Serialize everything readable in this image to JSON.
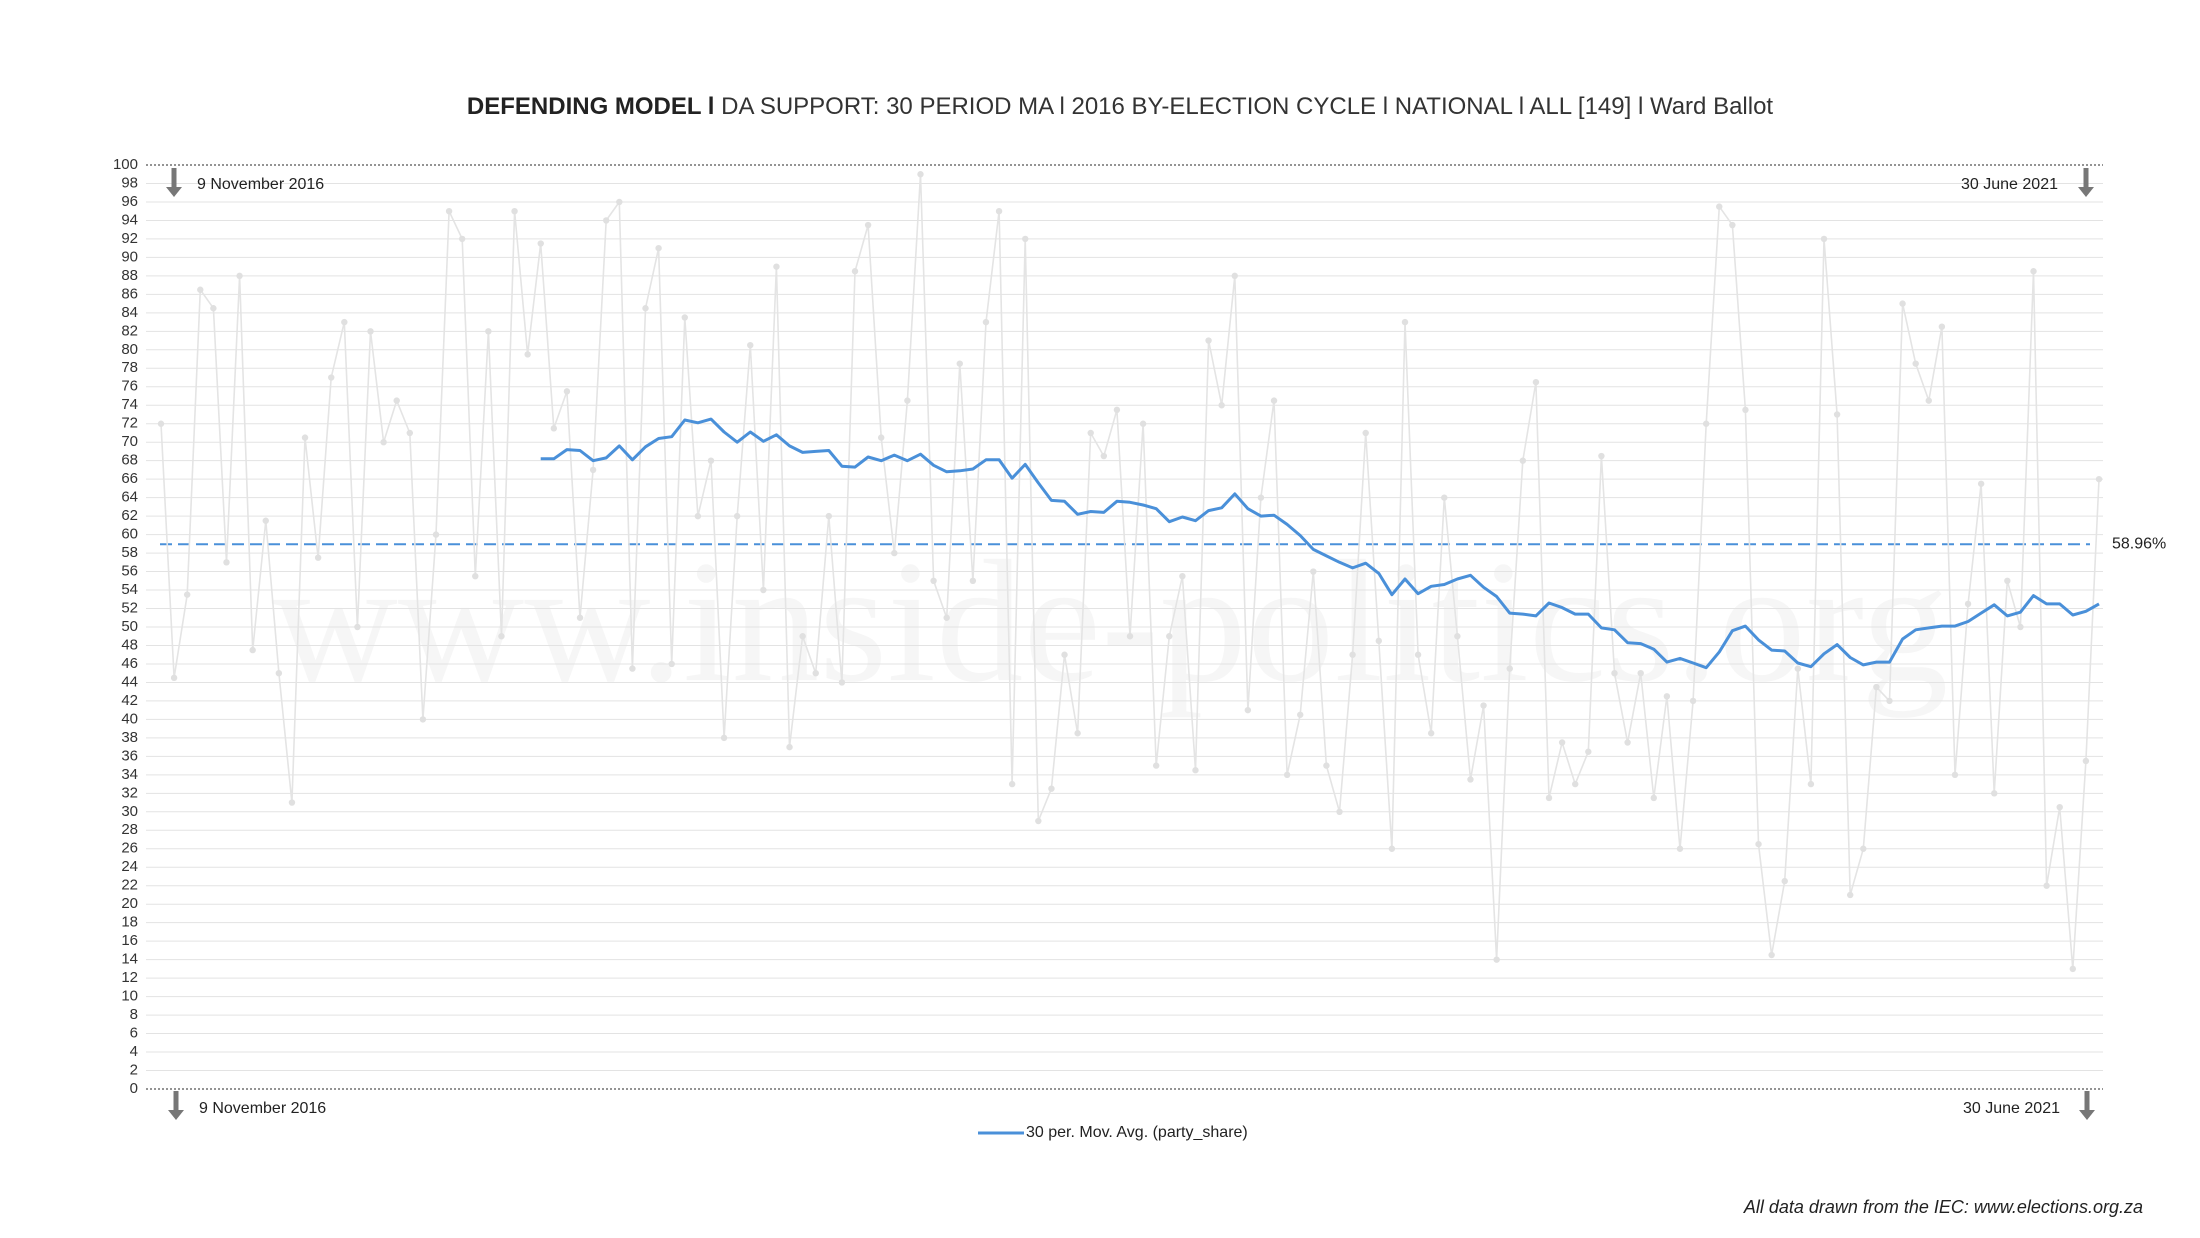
{
  "chart_data": {
    "type": "line",
    "title_bold": "DEFENDING MODEL l",
    "title": "DA SUPPORT: 30 PERIOD MA l 2016 BY-ELECTION CYCLE l NATIONAL l ALL [149] l Ward Ballot",
    "start_date": "9 November 2016",
    "end_date": "30 June 2021",
    "watermark": "www.inside-politics.org",
    "source": "All data drawn from the IEC: www.elections.org.za",
    "reference_line": {
      "value": 58.96,
      "label": "58.96%",
      "color": "#4a90d9"
    },
    "ylim": [
      0,
      100
    ],
    "yticks": [
      0,
      2,
      4,
      6,
      8,
      10,
      12,
      14,
      16,
      18,
      20,
      22,
      24,
      26,
      28,
      30,
      32,
      34,
      36,
      38,
      40,
      42,
      44,
      46,
      48,
      50,
      52,
      54,
      56,
      58,
      60,
      62,
      64,
      66,
      68,
      70,
      72,
      74,
      76,
      78,
      80,
      82,
      84,
      86,
      88,
      90,
      92,
      94,
      96,
      98,
      100
    ],
    "grid": true,
    "legend": "bottom",
    "series": [
      {
        "color": "#e4e4e4",
        "values": [
          72,
          44.5,
          53.5,
          86.5,
          84.5,
          57,
          88,
          47.5,
          61.5,
          45,
          31,
          70.5,
          57.5,
          77,
          83,
          50,
          82,
          70,
          74.5,
          71,
          40,
          60,
          95,
          92,
          55.5,
          82,
          49,
          95,
          79.5,
          91.5,
          71.5,
          75.5,
          51,
          67,
          94,
          96,
          45.5,
          84.5,
          91,
          46,
          83.5,
          62,
          68,
          38,
          62,
          80.5,
          54,
          89,
          37,
          49,
          45,
          62,
          44,
          88.5,
          93.5,
          70.5,
          58,
          74.5,
          99,
          55,
          51,
          78.5,
          55,
          83,
          95,
          33,
          92,
          29,
          32.5,
          47,
          38.5,
          71,
          68.5,
          73.5,
          49,
          72,
          35,
          49,
          55.5,
          34.5,
          81,
          74,
          88,
          41,
          64,
          74.5,
          34,
          40.5,
          56,
          35,
          30,
          47,
          71,
          48.5,
          26,
          83,
          47,
          38.5,
          64,
          49,
          33.5,
          41.5,
          14,
          45.5,
          68,
          76.5,
          31.5,
          37.5,
          33,
          36.5,
          68.5,
          45,
          37.5,
          45,
          31.5,
          42.5,
          26,
          42,
          72,
          95.5,
          93.5,
          73.5,
          26.5,
          14.5,
          22.5,
          45.5,
          33,
          92,
          73,
          21,
          26,
          43.5,
          42,
          85,
          78.5,
          74.5,
          82.5,
          34,
          52.5,
          65.5,
          32,
          55,
          50,
          88.5,
          22,
          30.5,
          13,
          35.5,
          66
        ]
      },
      {
        "name": "30 per. Mov. Avg. (party_share)",
        "color": "#4a90d9",
        "values": [
          null,
          null,
          null,
          null,
          null,
          null,
          null,
          null,
          null,
          null,
          null,
          null,
          null,
          null,
          null,
          null,
          null,
          null,
          null,
          null,
          null,
          null,
          null,
          null,
          null,
          null,
          null,
          null,
          null,
          68.2,
          68.2,
          69.2,
          69.1,
          68,
          68.3,
          69.6,
          68.1,
          69.5,
          70.4,
          70.6,
          72.4,
          72.1,
          72.5,
          71.1,
          70,
          71.1,
          70.1,
          70.8,
          69.6,
          68.9,
          69,
          69.1,
          67.4,
          67.3,
          68.4,
          68,
          68.6,
          68,
          68.7,
          67.5,
          66.8,
          66.9,
          67.1,
          68.1,
          68.1,
          66.1,
          67.6,
          65.6,
          63.7,
          63.6,
          62.2,
          62.5,
          62.4,
          63.6,
          63.5,
          63.2,
          62.8,
          61.4,
          61.9,
          61.5,
          62.6,
          62.9,
          64.4,
          62.8,
          62,
          62.1,
          61.1,
          59.9,
          58.4,
          57.7,
          57,
          56.4,
          56.9,
          55.8,
          53.5,
          55.2,
          53.6,
          54.4,
          54.6,
          55.2,
          55.6,
          54.3,
          53.3,
          51.5,
          51.4,
          51.2,
          52.6,
          52.1,
          51.4,
          51.4,
          49.9,
          49.7,
          48.3,
          48.2,
          47.6,
          46.2,
          46.6,
          46.1,
          45.6,
          47.3,
          49.6,
          50.1,
          48.6,
          47.5,
          47.4,
          46.1,
          45.7,
          47.1,
          48.1,
          46.7,
          45.9,
          46.2,
          46.2,
          48.7,
          49.7,
          49.9,
          50.1,
          50.1,
          50.6,
          51.5,
          52.4,
          51.2,
          51.6,
          53.4,
          52.5,
          52.5,
          51.3,
          51.7,
          52.5
        ]
      }
    ]
  }
}
